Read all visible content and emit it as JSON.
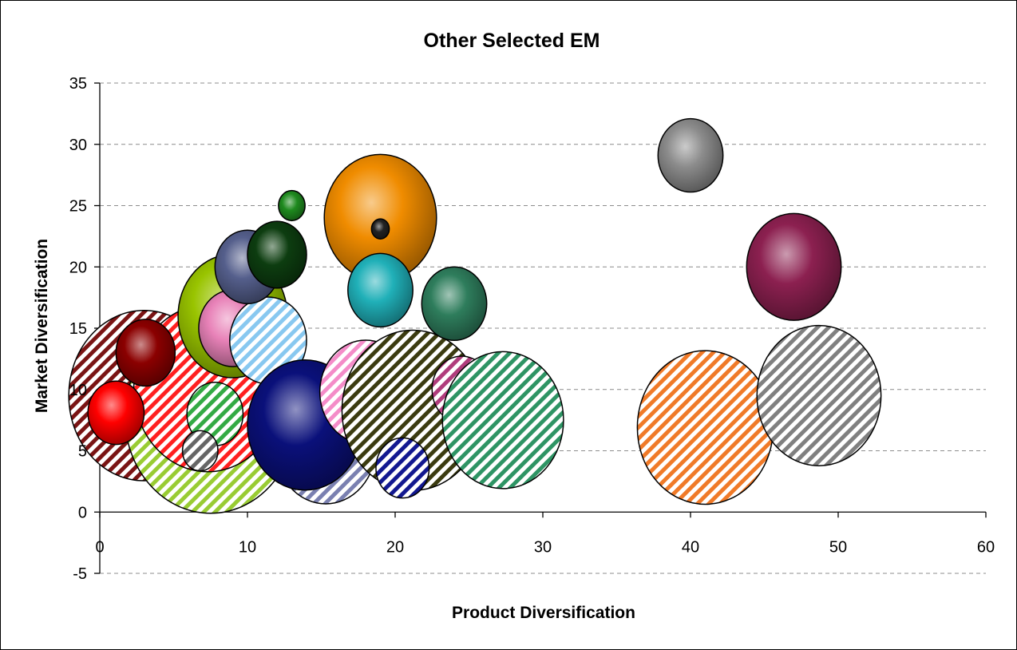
{
  "chart_data": {
    "type": "bubble",
    "title": "Other Selected EM",
    "xlabel": "Product Diversification",
    "ylabel": "Market Diversification",
    "xlim": [
      0,
      60
    ],
    "ylim": [
      -5,
      35
    ],
    "x_ticks": [
      "0",
      "10",
      "20",
      "30",
      "40",
      "50",
      "60"
    ],
    "y_ticks": [
      "-5",
      "0",
      "5",
      "10",
      "15",
      "20",
      "25",
      "30",
      "35"
    ],
    "grid": "horizontal dashed",
    "legend": "none",
    "points": [
      {
        "x": 3.0,
        "y": 9.5,
        "r": 5.1,
        "color": "#7a1414",
        "fill": "hatch"
      },
      {
        "x": 7.5,
        "y": 7.8,
        "r": 5.8,
        "color": "#99cc33",
        "fill": "hatch"
      },
      {
        "x": 7.3,
        "y": 10.1,
        "r": 5.0,
        "color": "#ff2020",
        "fill": "hatch"
      },
      {
        "x": 1.1,
        "y": 8.1,
        "r": 1.9,
        "color": "#ff0000",
        "fill": "solid"
      },
      {
        "x": 3.1,
        "y": 13.0,
        "r": 2.0,
        "color": "#8b0000",
        "fill": "solid"
      },
      {
        "x": 7.8,
        "y": 8.0,
        "r": 1.9,
        "color": "#33aa44",
        "fill": "hatch"
      },
      {
        "x": 6.8,
        "y": 5.0,
        "r": 1.2,
        "color": "#666666",
        "fill": "hatch"
      },
      {
        "x": 9.0,
        "y": 16.0,
        "r": 3.7,
        "color": "#99c400",
        "fill": "solid"
      },
      {
        "x": 9.0,
        "y": 15.0,
        "r": 2.3,
        "color": "#e882b8",
        "fill": "solid"
      },
      {
        "x": 11.4,
        "y": 14.0,
        "r": 2.6,
        "color": "#88c8f0",
        "fill": "hatch"
      },
      {
        "x": 10.0,
        "y": 20.0,
        "r": 2.2,
        "color": "#555f8c",
        "fill": "solid"
      },
      {
        "x": 12.0,
        "y": 21.0,
        "r": 2.0,
        "color": "#0d3d10",
        "fill": "solid"
      },
      {
        "x": 13.0,
        "y": 25.0,
        "r": 0.9,
        "color": "#1e8a1e",
        "fill": "solid"
      },
      {
        "x": 15.3,
        "y": 5.3,
        "r": 3.4,
        "color": "#7a80b0",
        "fill": "hatch"
      },
      {
        "x": 13.9,
        "y": 7.1,
        "r": 3.9,
        "color": "#0a107a",
        "fill": "solid"
      },
      {
        "x": 18.0,
        "y": 9.8,
        "r": 3.1,
        "color": "#f48cc8",
        "fill": "hatch"
      },
      {
        "x": 21.2,
        "y": 8.3,
        "r": 4.8,
        "color": "#3b3b10",
        "fill": "hatch"
      },
      {
        "x": 20.5,
        "y": 3.6,
        "r": 1.8,
        "color": "#121890",
        "fill": "hatch"
      },
      {
        "x": 19.0,
        "y": 24.0,
        "r": 3.8,
        "color": "#f08c00",
        "fill": "solid"
      },
      {
        "x": 19.0,
        "y": 23.1,
        "r": 0.6,
        "color": "#222222",
        "fill": "solid"
      },
      {
        "x": 19.0,
        "y": 18.1,
        "r": 2.2,
        "color": "#20b0b8",
        "fill": "solid"
      },
      {
        "x": 24.0,
        "y": 17.0,
        "r": 2.2,
        "color": "#2e7d5c",
        "fill": "solid"
      },
      {
        "x": 24.5,
        "y": 10.0,
        "r": 2.0,
        "color": "#b03c7c",
        "fill": "hatch"
      },
      {
        "x": 27.3,
        "y": 7.5,
        "r": 4.1,
        "color": "#2e9464",
        "fill": "hatch"
      },
      {
        "x": 40.0,
        "y": 29.1,
        "r": 2.2,
        "color": "#8c8c8c",
        "fill": "solid"
      },
      {
        "x": 41.0,
        "y": 6.9,
        "r": 4.6,
        "color": "#f07a28",
        "fill": "hatch"
      },
      {
        "x": 47.0,
        "y": 20.0,
        "r": 3.2,
        "color": "#8c2050",
        "fill": "solid"
      },
      {
        "x": 48.7,
        "y": 9.5,
        "r": 4.2,
        "color": "#808080",
        "fill": "hatch"
      }
    ]
  }
}
